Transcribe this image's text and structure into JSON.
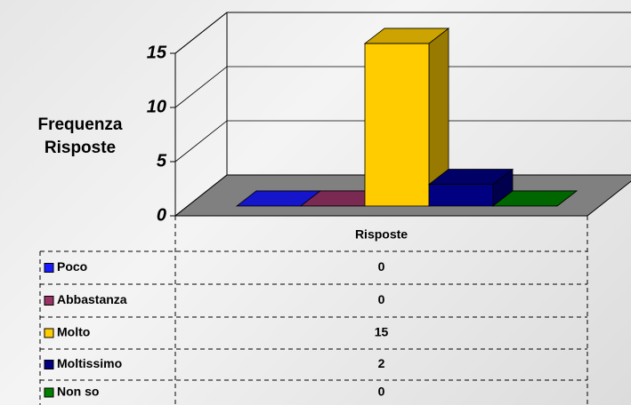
{
  "chart_data": {
    "type": "bar3d",
    "y_label": "Frequenza Risposte",
    "categories": [
      "Risposte"
    ],
    "series": [
      {
        "name": "Poco",
        "color": "#1a1aff",
        "values": [
          0
        ]
      },
      {
        "name": "Abbastanza",
        "color": "#993366",
        "values": [
          0
        ]
      },
      {
        "name": "Molto",
        "color": "#ffcc00",
        "values": [
          15
        ]
      },
      {
        "name": "Moltissimo",
        "color": "#000080",
        "values": [
          2
        ]
      },
      {
        "name": "Non so",
        "color": "#008000",
        "values": [
          0
        ]
      }
    ],
    "ylim": [
      0,
      15
    ],
    "yticks": [
      0,
      5,
      10,
      15
    ],
    "grid": true
  }
}
